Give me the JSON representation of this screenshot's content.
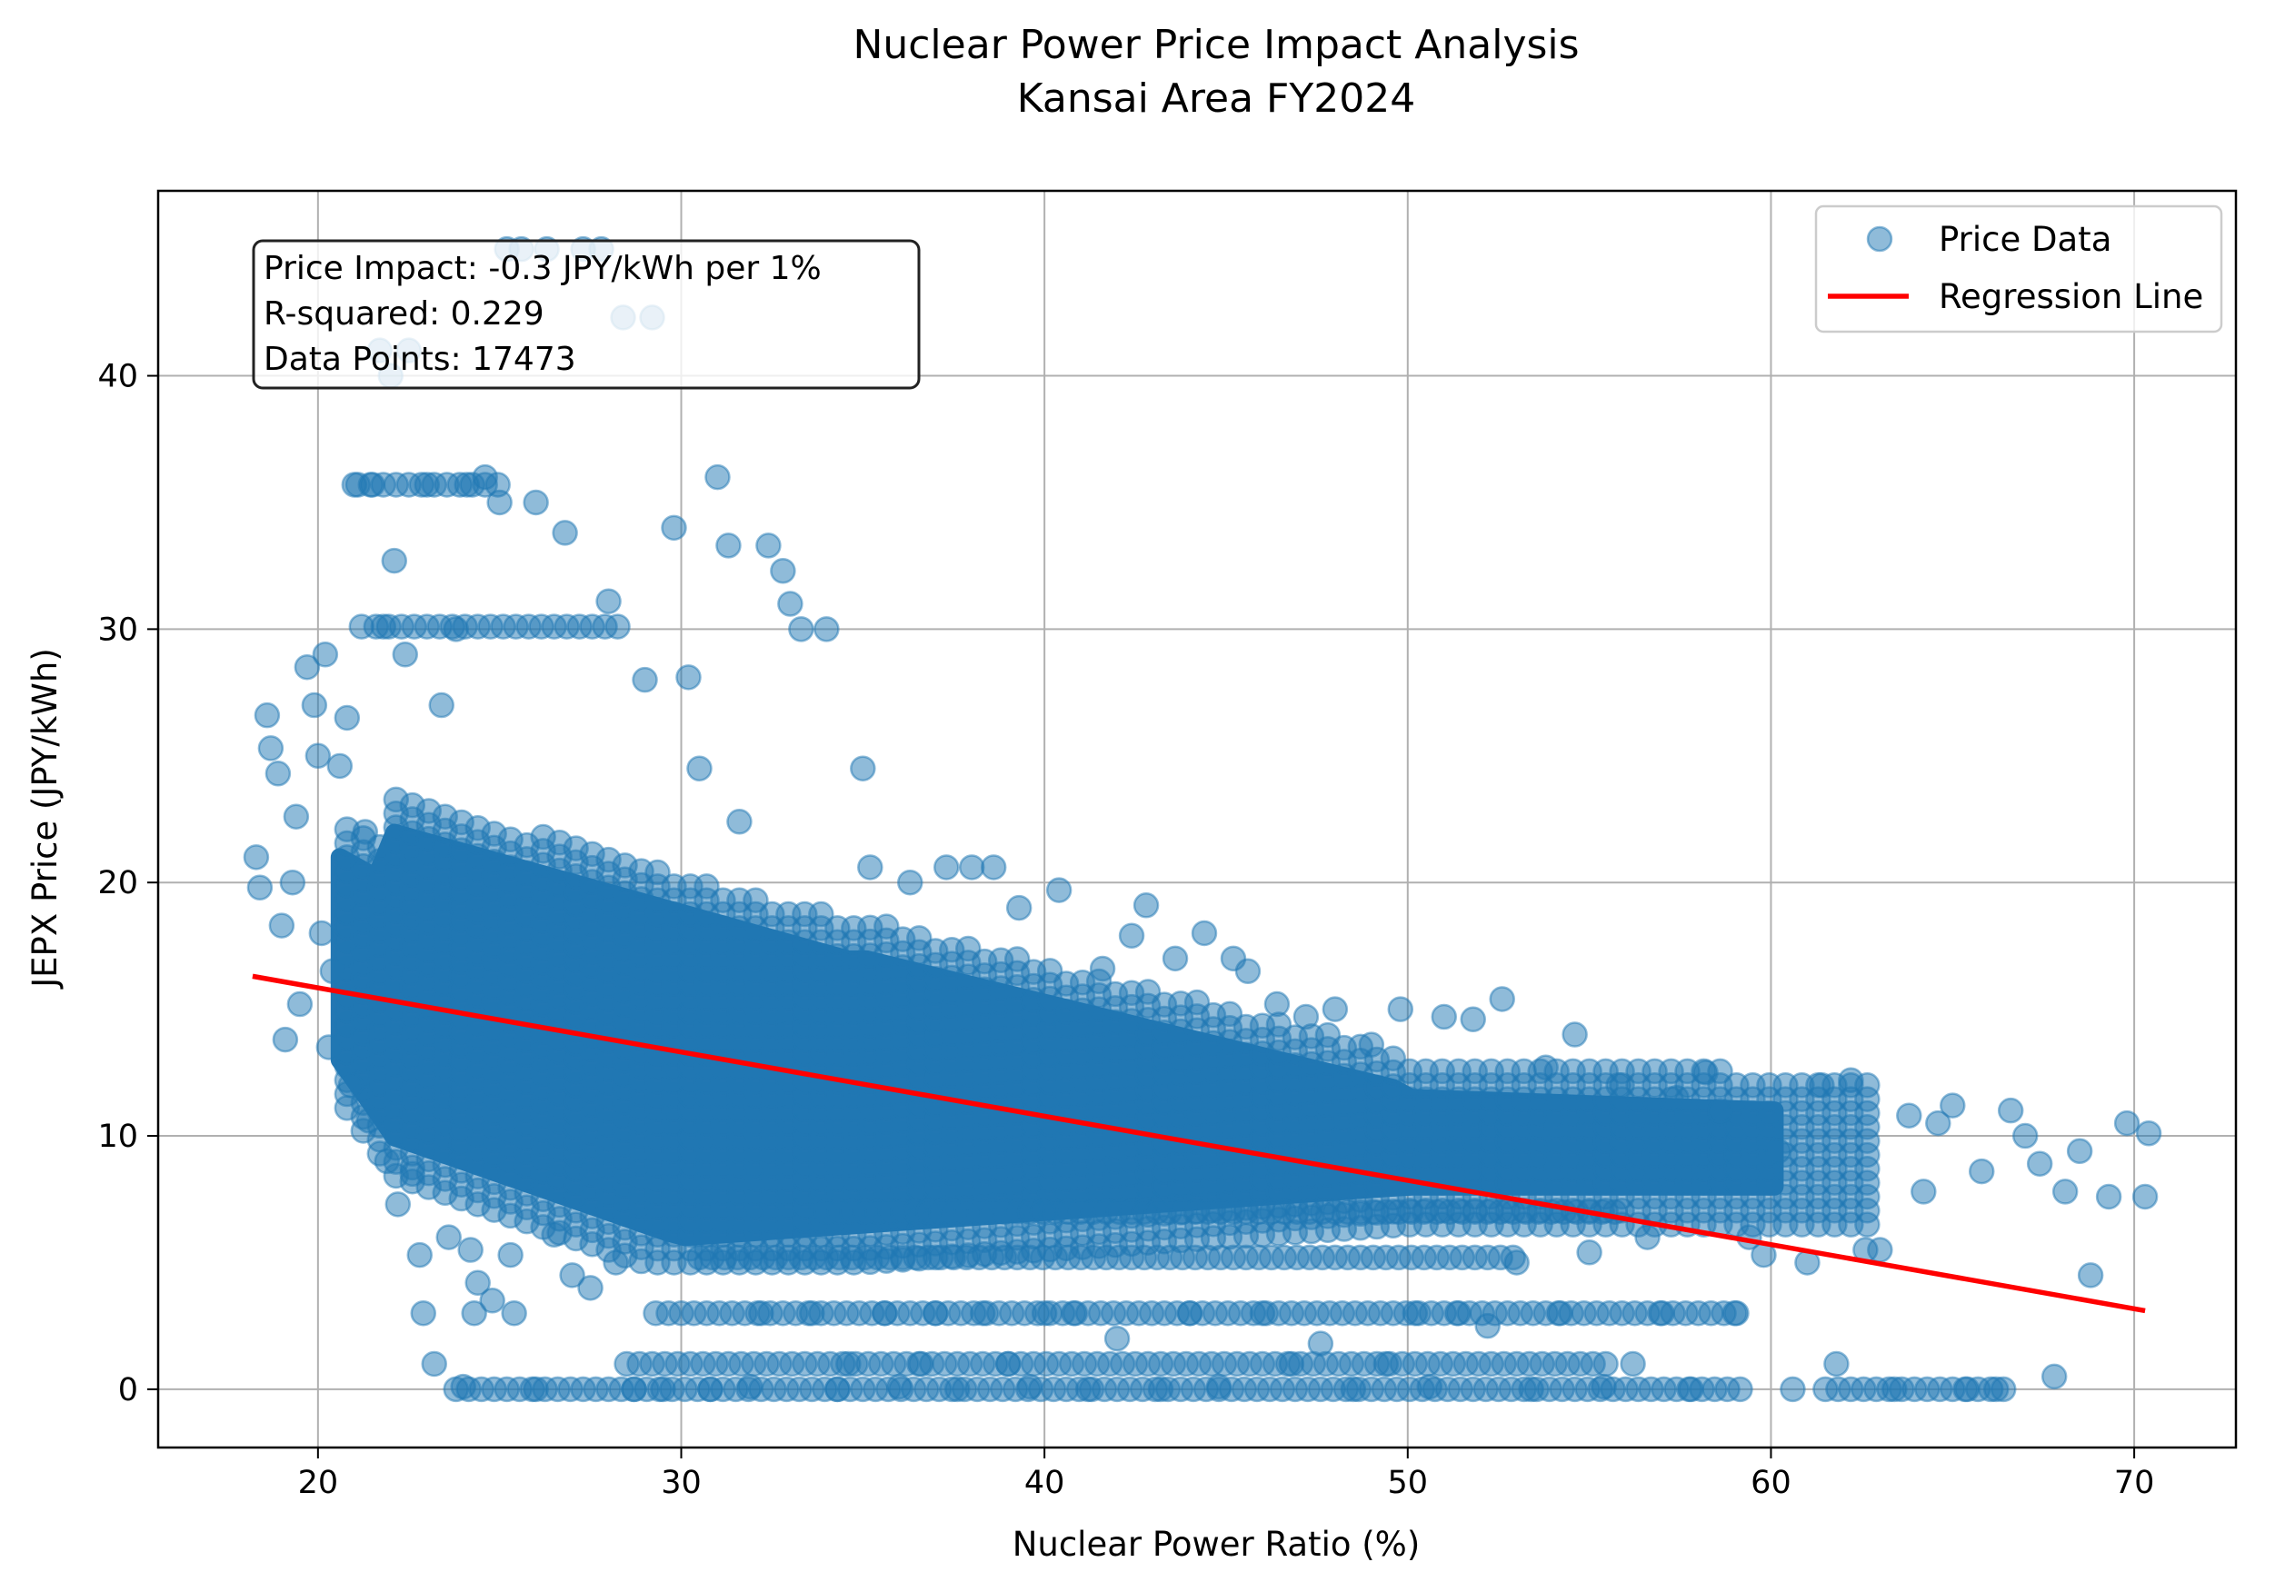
{
  "chart_data": {
    "type": "scatter",
    "title": "Nuclear Power Price Impact Analysis",
    "subtitle": "Kansai Area FY2024",
    "xlabel": "Nuclear Power Ratio (%)",
    "ylabel": "JEPX Price (JPY/kWh)",
    "xlim": [
      15.6,
      72.8
    ],
    "ylim": [
      -2.3,
      47.3
    ],
    "xticks": [
      20,
      30,
      40,
      50,
      60,
      70
    ],
    "yticks": [
      0,
      10,
      20,
      30,
      40
    ],
    "grid": true,
    "legend_position": "top-right",
    "series": [
      {
        "name": "Price Data",
        "kind": "scatter",
        "color": "#1f77b4",
        "alpha": 0.5,
        "points": [
          [
            18.3,
            21.0
          ],
          [
            18.4,
            19.8
          ],
          [
            18.6,
            26.6
          ],
          [
            18.7,
            25.3
          ],
          [
            18.9,
            24.3
          ],
          [
            19.0,
            18.3
          ],
          [
            19.1,
            13.8
          ],
          [
            19.3,
            20.0
          ],
          [
            19.4,
            22.6
          ],
          [
            19.5,
            15.2
          ],
          [
            19.7,
            28.5
          ],
          [
            19.9,
            27.0
          ],
          [
            20.0,
            25.0
          ],
          [
            20.1,
            18.0
          ],
          [
            20.2,
            29.0
          ],
          [
            20.3,
            13.5
          ],
          [
            20.4,
            16.5
          ],
          [
            20.6,
            24.6
          ],
          [
            20.8,
            26.5
          ],
          [
            20.9,
            12.0
          ],
          [
            21.0,
            35.7
          ],
          [
            21.2,
            30.1
          ],
          [
            21.3,
            22.0
          ],
          [
            21.4,
            10.6
          ],
          [
            21.5,
            35.7
          ],
          [
            21.7,
            41.0
          ],
          [
            21.8,
            30.1
          ],
          [
            21.9,
            9.0
          ],
          [
            22.0,
            40.0
          ],
          [
            22.1,
            32.7
          ],
          [
            22.2,
            7.3
          ],
          [
            22.4,
            29.0
          ],
          [
            22.5,
            41.0
          ],
          [
            22.6,
            8.5
          ],
          [
            22.8,
            5.3
          ],
          [
            22.9,
            3.0
          ],
          [
            23.0,
            35.7
          ],
          [
            23.2,
            1.0
          ],
          [
            23.4,
            27.0
          ],
          [
            23.6,
            6.0
          ],
          [
            23.8,
            30.0
          ],
          [
            24.0,
            0.1
          ],
          [
            24.1,
            35.7
          ],
          [
            24.2,
            5.5
          ],
          [
            24.3,
            3.0
          ],
          [
            24.4,
            4.2
          ],
          [
            24.6,
            36.0
          ],
          [
            24.8,
            3.5
          ],
          [
            25.0,
            35.0
          ],
          [
            25.2,
            45.0
          ],
          [
            25.3,
            5.3
          ],
          [
            25.4,
            3.0
          ],
          [
            25.6,
            45.0
          ],
          [
            26.0,
            0.0
          ],
          [
            26.0,
            35.0
          ],
          [
            26.3,
            45.0
          ],
          [
            26.5,
            6.1
          ],
          [
            26.8,
            33.8
          ],
          [
            27.0,
            4.5
          ],
          [
            27.3,
            45.0
          ],
          [
            27.5,
            4.0
          ],
          [
            27.8,
            45.0
          ],
          [
            28.0,
            31.1
          ],
          [
            28.2,
            5.0
          ],
          [
            28.4,
            42.3
          ],
          [
            28.7,
            0.0
          ],
          [
            29.0,
            28.0
          ],
          [
            29.2,
            42.3
          ],
          [
            29.5,
            0.0
          ],
          [
            29.8,
            34.0
          ],
          [
            30.2,
            28.1
          ],
          [
            30.5,
            24.5
          ],
          [
            30.8,
            0.0
          ],
          [
            31.0,
            36.0
          ],
          [
            31.3,
            33.3
          ],
          [
            31.6,
            22.4
          ],
          [
            31.9,
            0.1
          ],
          [
            32.2,
            3.0
          ],
          [
            32.4,
            33.3
          ],
          [
            32.8,
            32.3
          ],
          [
            33.0,
            31.0
          ],
          [
            33.3,
            30.0
          ],
          [
            33.6,
            3.0
          ],
          [
            34.0,
            30.0
          ],
          [
            34.3,
            0.0
          ],
          [
            34.6,
            1.0
          ],
          [
            35.0,
            24.5
          ],
          [
            35.2,
            20.6
          ],
          [
            35.6,
            3.0
          ],
          [
            36.0,
            0.1
          ],
          [
            36.3,
            20.0
          ],
          [
            36.6,
            1.0
          ],
          [
            37.0,
            3.0
          ],
          [
            37.3,
            20.6
          ],
          [
            37.6,
            0.0
          ],
          [
            38.0,
            20.6
          ],
          [
            38.3,
            3.0
          ],
          [
            38.6,
            20.6
          ],
          [
            39.0,
            1.0
          ],
          [
            39.3,
            19.0
          ],
          [
            39.6,
            0.1
          ],
          [
            40.0,
            3.0
          ],
          [
            40.4,
            19.7
          ],
          [
            40.8,
            3.0
          ],
          [
            41.2,
            0.0
          ],
          [
            41.6,
            16.6
          ],
          [
            42.0,
            2.0
          ],
          [
            42.4,
            17.9
          ],
          [
            42.8,
            19.1
          ],
          [
            43.2,
            0.0
          ],
          [
            43.6,
            17.0
          ],
          [
            44.0,
            3.0
          ],
          [
            44.4,
            18.0
          ],
          [
            44.8,
            0.1
          ],
          [
            45.2,
            17.0
          ],
          [
            45.6,
            16.5
          ],
          [
            46.0,
            3.0
          ],
          [
            46.4,
            15.2
          ],
          [
            46.8,
            1.0
          ],
          [
            47.2,
            14.7
          ],
          [
            47.6,
            1.8
          ],
          [
            48.0,
            15.0
          ],
          [
            48.5,
            0.0
          ],
          [
            49.0,
            13.6
          ],
          [
            49.4,
            1.0
          ],
          [
            49.8,
            15.0
          ],
          [
            50.2,
            3.0
          ],
          [
            50.6,
            0.1
          ],
          [
            51.0,
            14.7
          ],
          [
            51.4,
            3.0
          ],
          [
            51.8,
            14.6
          ],
          [
            52.2,
            2.5
          ],
          [
            52.6,
            15.4
          ],
          [
            53.0,
            5.0
          ],
          [
            53.4,
            0.0
          ],
          [
            53.8,
            12.7
          ],
          [
            54.2,
            3.0
          ],
          [
            54.6,
            14.0
          ],
          [
            55.0,
            5.4
          ],
          [
            55.4,
            0.1
          ],
          [
            55.8,
            12.0
          ],
          [
            56.2,
            1.0
          ],
          [
            56.6,
            6.0
          ],
          [
            57.0,
            3.0
          ],
          [
            57.4,
            11.5
          ],
          [
            57.8,
            0.0
          ],
          [
            58.2,
            12.5
          ],
          [
            58.6,
            11.0
          ],
          [
            59.0,
            3.0
          ],
          [
            59.4,
            6.0
          ],
          [
            59.8,
            5.3
          ],
          [
            60.2,
            9.4
          ],
          [
            60.6,
            0.0
          ],
          [
            61.0,
            5.0
          ],
          [
            61.4,
            12.0
          ],
          [
            61.8,
            1.0
          ],
          [
            62.2,
            12.2
          ],
          [
            62.6,
            5.5
          ],
          [
            63.0,
            5.5
          ],
          [
            63.4,
            0.0
          ],
          [
            63.8,
            10.8
          ],
          [
            64.2,
            7.8
          ],
          [
            64.6,
            10.5
          ],
          [
            65.0,
            11.2
          ],
          [
            65.4,
            0.0
          ],
          [
            65.8,
            8.6
          ],
          [
            66.2,
            0.0
          ],
          [
            66.6,
            11.0
          ],
          [
            67.0,
            10.0
          ],
          [
            67.4,
            8.9
          ],
          [
            67.8,
            0.5
          ],
          [
            68.1,
            7.8
          ],
          [
            68.5,
            9.4
          ],
          [
            68.8,
            4.5
          ],
          [
            69.3,
            7.6
          ],
          [
            69.8,
            10.5
          ],
          [
            70.3,
            7.6
          ],
          [
            70.4,
            10.1
          ]
        ]
      },
      {
        "name": "Regression Line",
        "kind": "line",
        "color": "#ff0000",
        "points": [
          [
            18.2,
            16.3
          ],
          [
            70.3,
            3.1
          ]
        ]
      }
    ],
    "annotation": {
      "lines": [
        "Price Impact: -0.3 JPY/kWh per 1%",
        "R-squared: 0.229",
        "Data Points: 17473"
      ]
    }
  }
}
